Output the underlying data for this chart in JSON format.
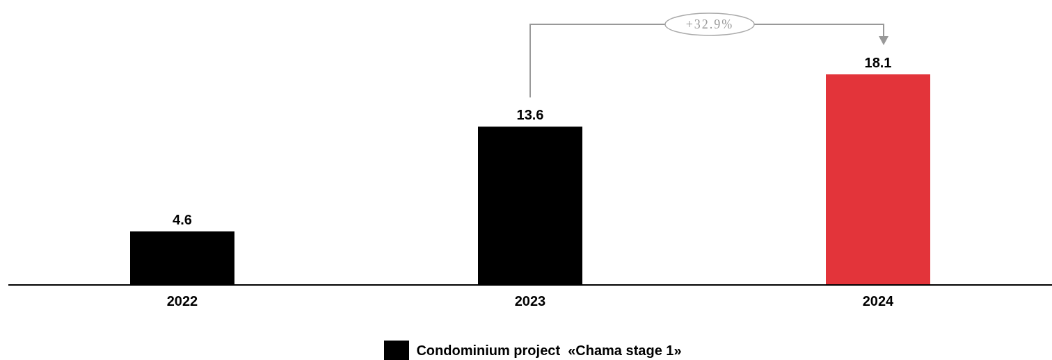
{
  "chart_data": {
    "type": "bar",
    "categories": [
      "2022",
      "2023",
      "2024"
    ],
    "data_labels": true,
    "legend": "bottom",
    "annotations": [
      "+32.9%"
    ],
    "series": [
      {
        "name": "Condominium project  «Chama stage 1»",
        "color": "#000000",
        "colors": [
          "#000000",
          "#000000",
          "#e3343a"
        ],
        "values": [
          4.6,
          13.6,
          18.1
        ]
      }
    ]
  }
}
